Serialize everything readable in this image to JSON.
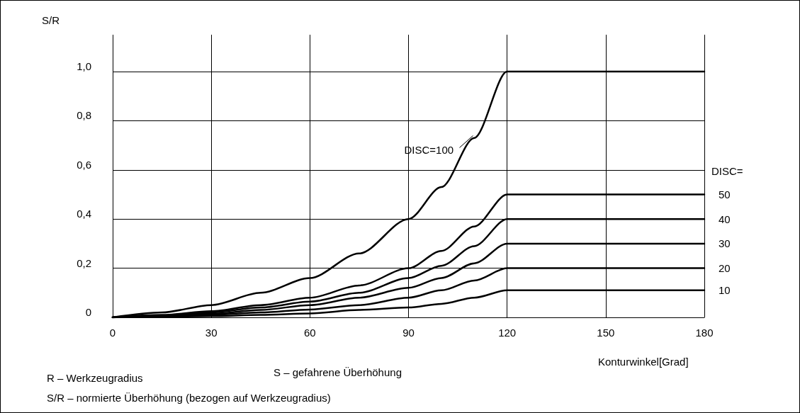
{
  "chart_data": {
    "type": "line",
    "xlabel": "Konturwinkel[Grad]",
    "ylabel": "S/R",
    "legend_title": "DISC=",
    "x": [
      0,
      15,
      30,
      45,
      60,
      75,
      90,
      100,
      110,
      120,
      180
    ],
    "series": [
      {
        "color": "#000000",
        "values": [
          0,
          0.02,
          0.05,
          0.1,
          0.16,
          0.26,
          0.4,
          0.53,
          0.73,
          1.0,
          1.0
        ]
      },
      {
        "name": "50",
        "color": "#000000",
        "values": [
          0,
          0.01,
          0.025,
          0.05,
          0.08,
          0.13,
          0.2,
          0.27,
          0.37,
          0.5,
          0.5
        ]
      },
      {
        "name": "40",
        "color": "#000000",
        "values": [
          0,
          0.008,
          0.02,
          0.04,
          0.064,
          0.1,
          0.16,
          0.21,
          0.29,
          0.4,
          0.4
        ]
      },
      {
        "name": "30",
        "color": "#000000",
        "values": [
          0,
          0.006,
          0.015,
          0.03,
          0.05,
          0.08,
          0.12,
          0.16,
          0.22,
          0.3,
          0.3
        ]
      },
      {
        "name": "20",
        "color": "#000000",
        "values": [
          0,
          0.004,
          0.01,
          0.02,
          0.032,
          0.05,
          0.08,
          0.11,
          0.15,
          0.2,
          0.2
        ]
      },
      {
        "name": "10",
        "color": "#000000",
        "values": [
          0,
          0.002,
          0.005,
          0.01,
          0.016,
          0.03,
          0.04,
          0.055,
          0.08,
          0.11,
          0.11
        ]
      }
    ],
    "xlim": [
      0,
      180
    ],
    "xticks": [
      0,
      30,
      60,
      90,
      120,
      150,
      180
    ],
    "ylim": [
      0,
      1.15
    ],
    "yticks": [
      {
        "value": 0,
        "label": "0"
      },
      {
        "value": 0.2,
        "label": "0,2"
      },
      {
        "value": 0.4,
        "label": "0,4"
      },
      {
        "value": 0.6,
        "label": "0,6"
      },
      {
        "value": 0.8,
        "label": "0,8"
      },
      {
        "value": 1.0,
        "label": "1,0"
      }
    ],
    "grid": true,
    "marker": "none",
    "line_style": "solid",
    "legend": false,
    "annotations": [
      {
        "text": "DISC=100",
        "x": 110,
        "y": 0.75
      },
      "R – Werkzeugradius",
      "S – gefahrene Überhöhung",
      "S/R – normierte Überhöhung (bezogen auf Werkzeugradius)"
    ]
  }
}
